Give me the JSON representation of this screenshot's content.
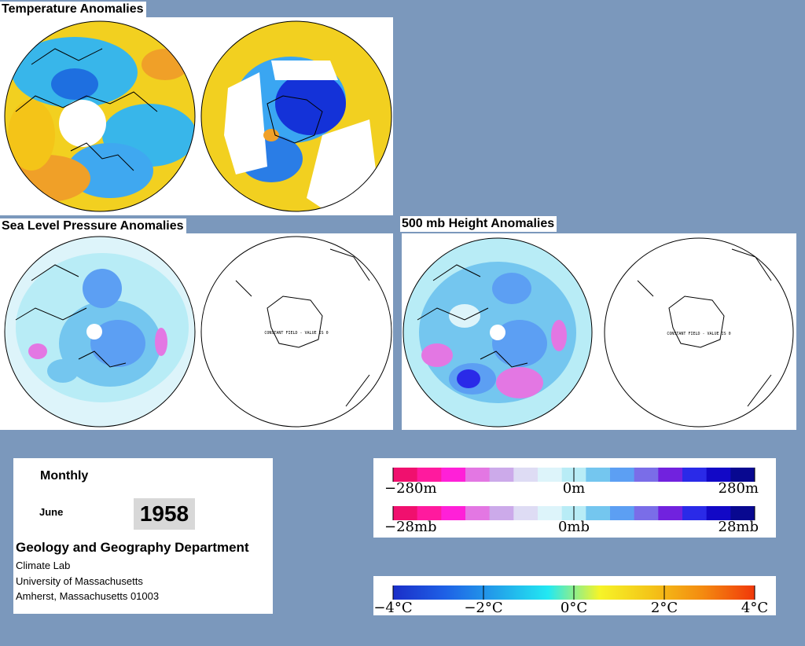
{
  "panels": {
    "temperature_title": "Temperature Anomalies",
    "slp_title": "Sea Level Pressure Anomalies",
    "height_title": "500 mb Height Anomalies",
    "constant_field_note": "CONSTANT FIELD - VALUE IS 0"
  },
  "info": {
    "frequency": "Monthly",
    "month": "June",
    "year": "1958",
    "department": "Geology and Geography Department",
    "lines": [
      "Climate Lab",
      "University of Massachusetts",
      "Amherst, Massachusetts 01003"
    ]
  },
  "legends": {
    "height_colors": [
      "#f0106e",
      "#ff1a9e",
      "#ff20d8",
      "#e377e3",
      "#ccaaea",
      "#dedcf4",
      "#ddf4fa",
      "#b8ecf6",
      "#74c6ef",
      "#5c9ff3",
      "#7a6de8",
      "#7122de",
      "#2a2ae8",
      "#1208c6",
      "#080890"
    ],
    "height_labels": [
      "−280m",
      "0m",
      "280m"
    ],
    "pressure_labels": [
      "−28mb",
      "0mb",
      "28mb"
    ],
    "temperature_labels": [
      "−4°C",
      "−2°C",
      "0°C",
      "2°C",
      "4°C"
    ],
    "temperature_stops": [
      "#1a2ec8",
      "#1e60e6",
      "#22a2ea",
      "#22e8f2",
      "#f6f428",
      "#f4c418",
      "#f48a10",
      "#f0380a"
    ]
  }
}
